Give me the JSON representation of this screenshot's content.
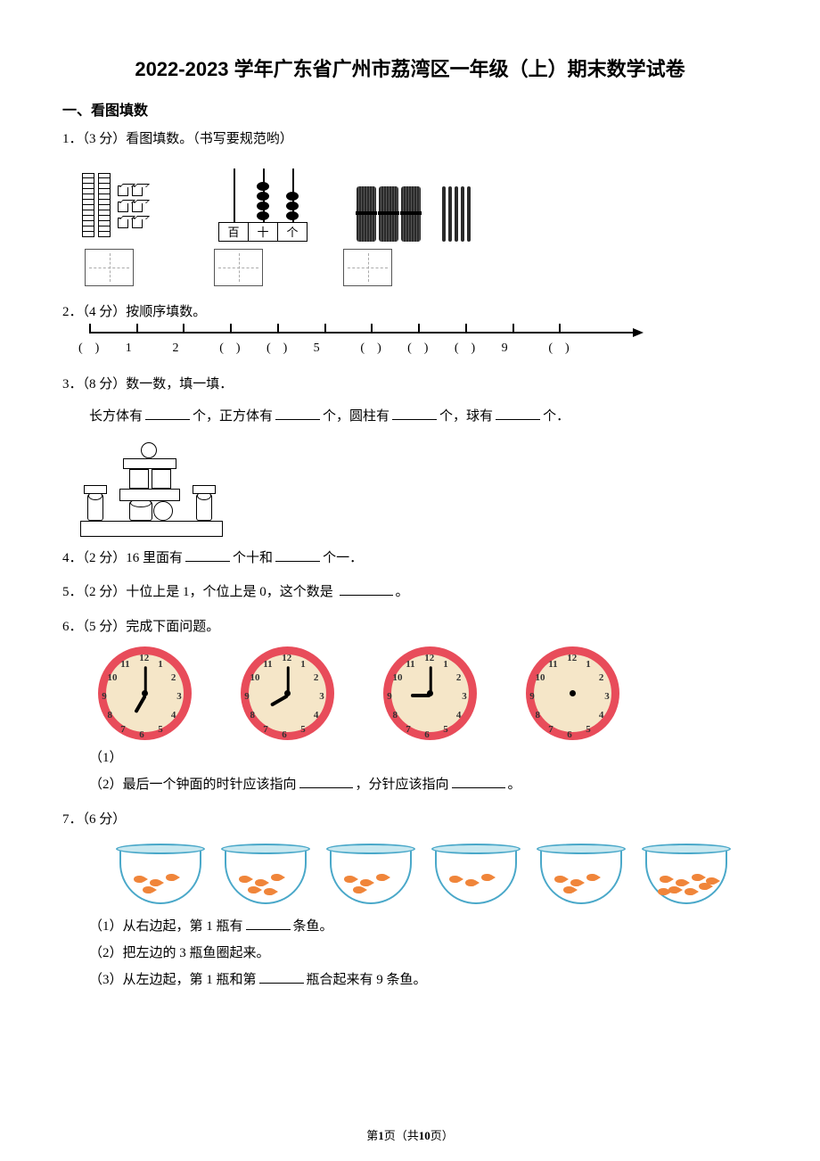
{
  "title": "2022-2023 学年广东省广州市荔湾区一年级（上）期末数学试卷",
  "section1": "一、看图填数",
  "q1": {
    "num": "1．",
    "pts": "（3 分）",
    "text": "看图填数。（书写要规范哟）",
    "abacus_cols": [
      "百",
      "十",
      "个"
    ]
  },
  "q2": {
    "num": "2．",
    "pts": "（4 分）",
    "text": "按顺序填数。",
    "labels": [
      "(　)",
      "1",
      "2",
      "(　)",
      "(　)",
      "5",
      "(　)",
      "(　)",
      "(　)",
      "9",
      "(　)"
    ]
  },
  "q3": {
    "num": "3．",
    "pts": "（8 分）",
    "text": "数一数，填一填．",
    "line": {
      "a": "长方体有",
      "b": "个，正方体有",
      "c": "个，圆柱有",
      "d": "个，球有",
      "e": "个．"
    }
  },
  "q4": {
    "num": "4．",
    "pts": "（2 分）",
    "a": "16 里面有",
    "b": "个十和",
    "c": "个一．"
  },
  "q5": {
    "num": "5．",
    "pts": "（2 分）",
    "text": "十位上是 1，个位上是 0，这个数是",
    "end": "。"
  },
  "q6": {
    "num": "6．",
    "pts": "（5 分）",
    "text": "完成下面问题。",
    "sub1": "（1）",
    "sub2": "（2）最后一个钟面的时针应该指向",
    "sub2b": "，分针应该指向",
    "sub2c": "。",
    "clocks": [
      {
        "hour_angle": 120,
        "minute_angle": -90,
        "show_hands": true
      },
      {
        "hour_angle": 150,
        "minute_angle": -90,
        "show_hands": true
      },
      {
        "hour_angle": 180,
        "minute_angle": -90,
        "show_hands": true
      },
      {
        "hour_angle": 0,
        "minute_angle": 0,
        "show_hands": false
      }
    ],
    "clock_colors": {
      "rim": "#e84c5a",
      "face": "#f5e6c8"
    }
  },
  "q7": {
    "num": "7．",
    "pts": "（6 分）",
    "bowls_fish": [
      4,
      5,
      4,
      3,
      4,
      8
    ],
    "sub1a": "（1）从右边起，第 1 瓶有",
    "sub1b": "条鱼。",
    "sub2": "（2）把左边的 3 瓶鱼圈起来。",
    "sub3a": "（3）从左边起，第 1 瓶和第",
    "sub3b": "瓶合起来有 9 条鱼。",
    "colors": {
      "bowl_border": "#4aa8c9",
      "water": "#5bb8d8",
      "fish": "#f0853a"
    }
  },
  "footer": {
    "a": "第",
    "pg": "1",
    "b": "页（共",
    "total": "10",
    "c": "页）"
  }
}
